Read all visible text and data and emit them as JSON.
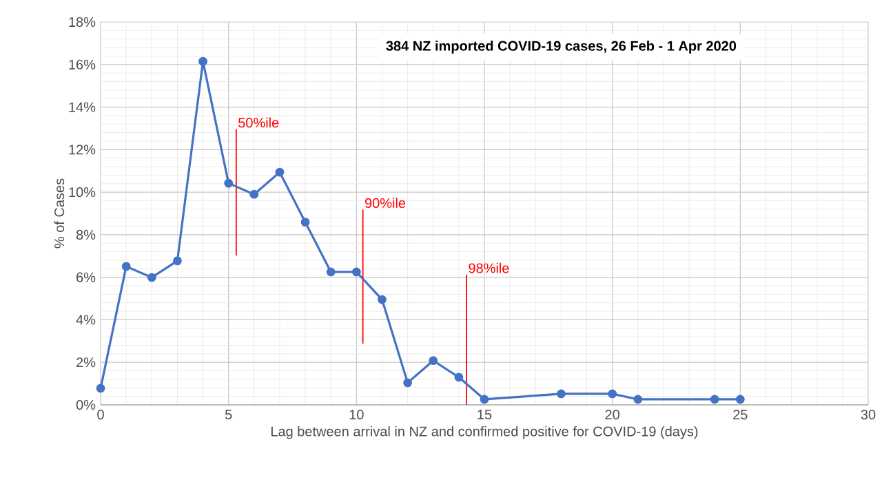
{
  "chart_data": {
    "type": "line",
    "title": "384  NZ imported COVID-19 cases,  26 Feb - 1 Apr 2020",
    "xlabel": "Lag between arrival in NZ and confirmed positive for COVID-19 (days)",
    "ylabel": "% of Cases",
    "x": [
      0,
      1,
      2,
      3,
      4,
      5,
      6,
      7,
      8,
      9,
      10,
      11,
      12,
      13,
      14,
      15,
      18,
      20,
      21,
      24,
      25
    ],
    "series": [
      {
        "color": "#4472c4",
        "values": [
          0.78,
          6.51,
          5.99,
          6.77,
          16.15,
          10.42,
          9.9,
          10.94,
          8.59,
          6.25,
          6.25,
          4.95,
          1.04,
          2.08,
          1.3,
          0.26,
          0.52,
          0.52,
          0.26,
          0.26,
          0.26
        ]
      }
    ],
    "xlim": [
      0,
      30
    ],
    "xticks": [
      0,
      5,
      10,
      15,
      20,
      25,
      30
    ],
    "ylim": [
      0,
      18
    ],
    "yticks": [
      {
        "value": 0,
        "label": "0%"
      },
      {
        "value": 2,
        "label": "2%"
      },
      {
        "value": 4,
        "label": "4%"
      },
      {
        "value": 6,
        "label": "6%"
      },
      {
        "value": 8,
        "label": "8%"
      },
      {
        "value": 10,
        "label": "10%"
      },
      {
        "value": 12,
        "label": "12%"
      },
      {
        "value": 14,
        "label": "14%"
      },
      {
        "value": 16,
        "label": "16%"
      },
      {
        "value": 18,
        "label": "18%"
      }
    ],
    "ref_lines": [
      {
        "axis": "x",
        "value": 5.3,
        "label": "50%ile",
        "color": "#ff0000"
      },
      {
        "axis": "x",
        "value": 10.25,
        "label": "90%ile",
        "color": "#ff0000"
      },
      {
        "axis": "x",
        "value": 14.3,
        "label": "98%ile",
        "color": "#ff0000"
      }
    ],
    "grid": true,
    "marker": "circle",
    "line_style": "solid"
  }
}
